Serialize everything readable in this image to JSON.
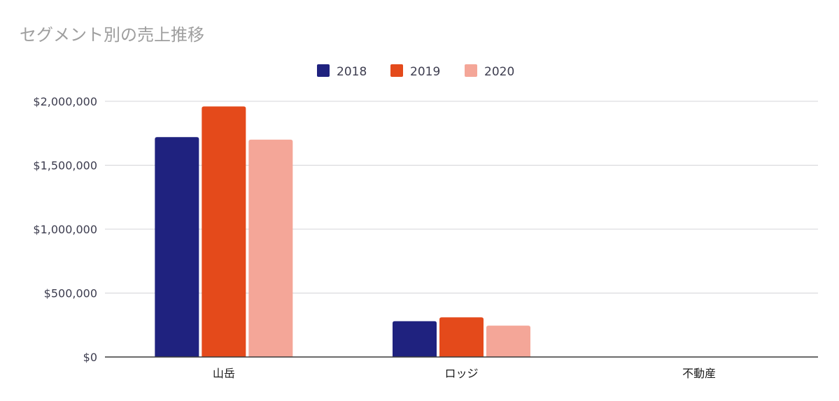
{
  "chart_data": {
    "type": "bar",
    "title": "セグメント別の売上推移",
    "categories": [
      "山岳",
      "ロッジ",
      "不動産"
    ],
    "series": [
      {
        "name": "2018",
        "color": "#1f227f",
        "values": [
          1720000,
          280000,
          0
        ]
      },
      {
        "name": "2019",
        "color": "#e44a1b",
        "values": [
          1960000,
          310000,
          0
        ]
      },
      {
        "name": "2020",
        "color": "#f4a698",
        "values": [
          1700000,
          245000,
          0
        ]
      }
    ],
    "xlabel": "",
    "ylabel": "",
    "ylim": [
      0,
      2000000
    ],
    "yticks": [
      0,
      500000,
      1000000,
      1500000,
      2000000
    ],
    "ytick_labels": [
      "$0",
      "$500,000",
      "$1,000,000",
      "$1,500,000",
      "$2,000,000"
    ],
    "legend": {
      "position": "top-center",
      "entries": [
        "2018",
        "2019",
        "2020"
      ]
    },
    "grid": true
  }
}
